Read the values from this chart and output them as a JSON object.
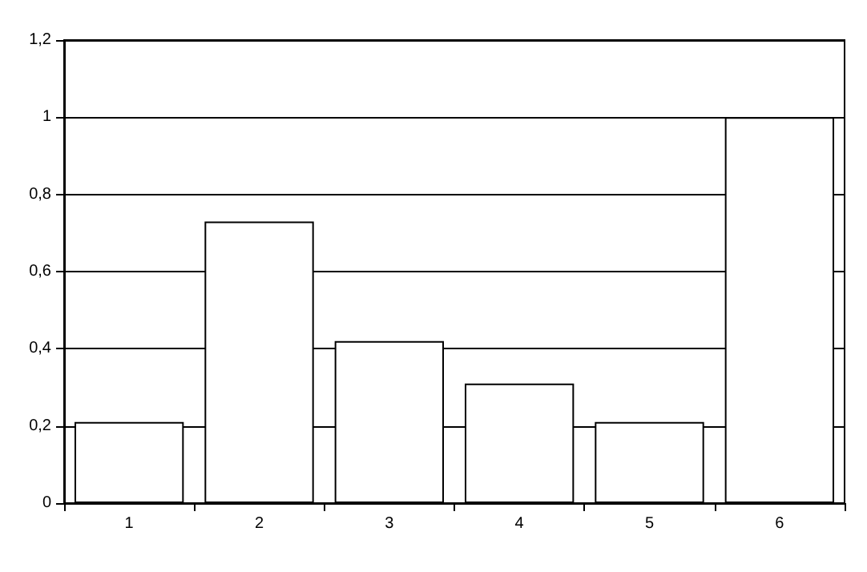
{
  "chart_data": {
    "type": "bar",
    "categories": [
      "1",
      "2",
      "3",
      "4",
      "5",
      "6"
    ],
    "values": [
      0.21,
      0.73,
      0.42,
      0.31,
      0.21,
      1.0
    ],
    "color": "#ffffff",
    "ylim": [
      0,
      1.2
    ],
    "yticks": [
      0,
      {
        "value": 0.2,
        "label": "0,2"
      },
      {
        "value": 0.4,
        "label": "0,4"
      },
      {
        "value": 0.6,
        "label": "0,6"
      },
      {
        "value": 0.8,
        "label": "0,8"
      },
      1,
      {
        "value": 1.2,
        "label": "1,2"
      }
    ],
    "grid": "y"
  }
}
